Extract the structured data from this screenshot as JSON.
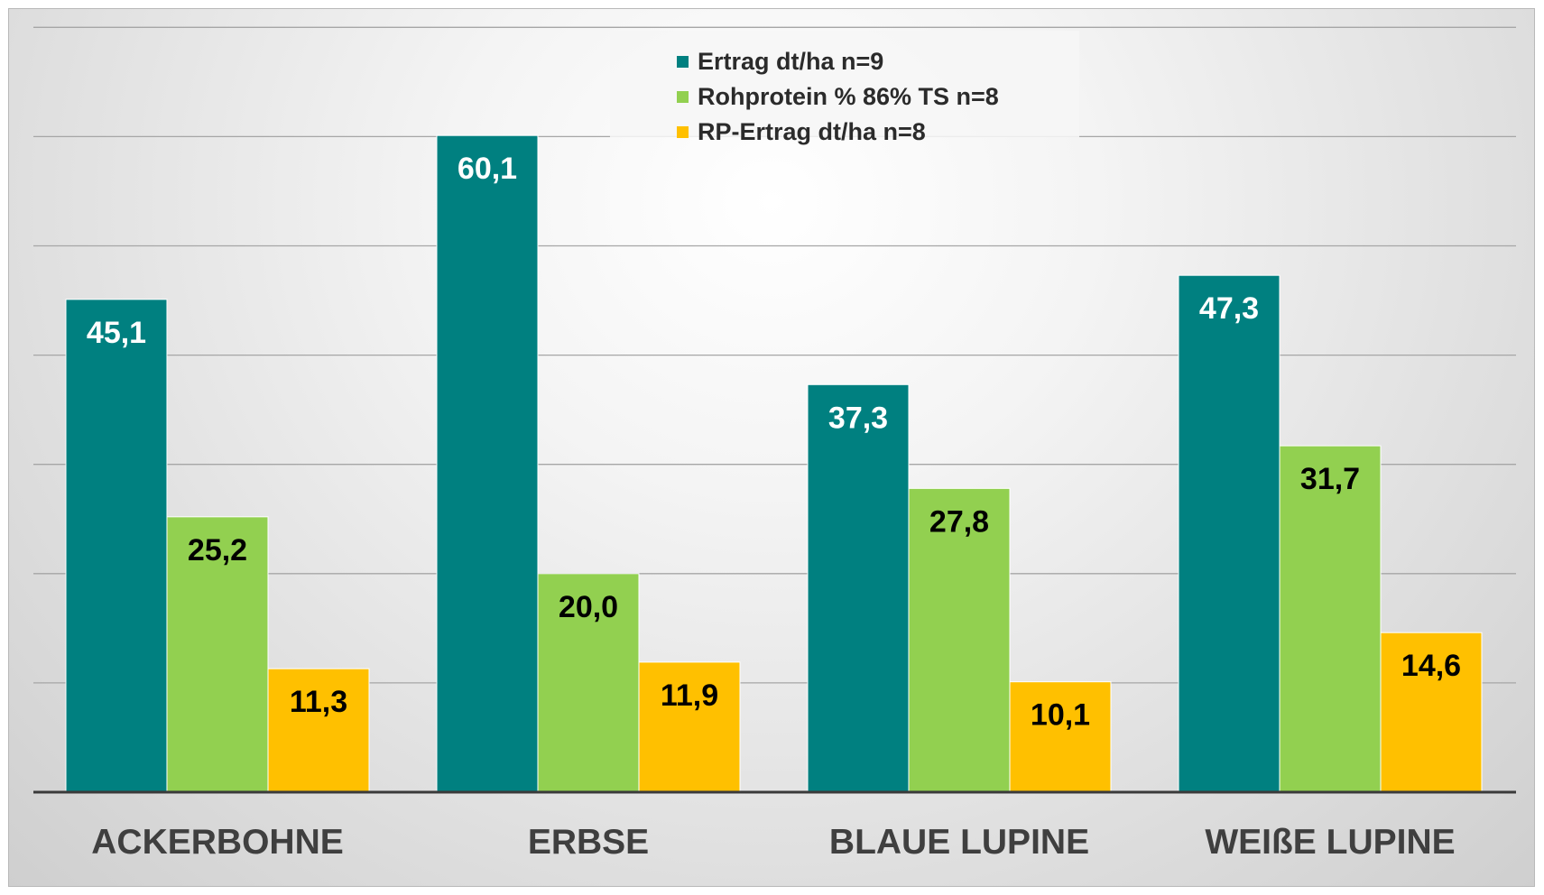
{
  "chart_data": {
    "type": "bar",
    "categories": [
      "ACKERBOHNE",
      "ERBSE",
      "BLAUE LUPINE",
      "WEIßE LUPINE"
    ],
    "series": [
      {
        "name": "Ertrag dt/ha n=9",
        "color": "#008080",
        "label_color": "#ffffff",
        "values": [
          45.1,
          60.1,
          37.3,
          47.3
        ],
        "labels": [
          "45,1",
          "60,1",
          "37,3",
          "47,3"
        ]
      },
      {
        "name": "Rohprotein % 86% TS n=8",
        "color": "#92d050",
        "label_color": "#000000",
        "values": [
          25.2,
          20.0,
          27.8,
          31.7
        ],
        "labels": [
          "25,2",
          "20,0",
          "27,8",
          "31,7"
        ]
      },
      {
        "name": "RP-Ertrag dt/ha n=8",
        "color": "#ffc000",
        "label_color": "#000000",
        "values": [
          11.3,
          11.9,
          10.1,
          14.6
        ],
        "labels": [
          "11,3",
          "11,9",
          "10,1",
          "14,6"
        ]
      }
    ],
    "ylim": [
      0,
      70
    ],
    "grid": true,
    "legend_position": "top-center",
    "title": "",
    "xlabel": "",
    "ylabel": ""
  }
}
